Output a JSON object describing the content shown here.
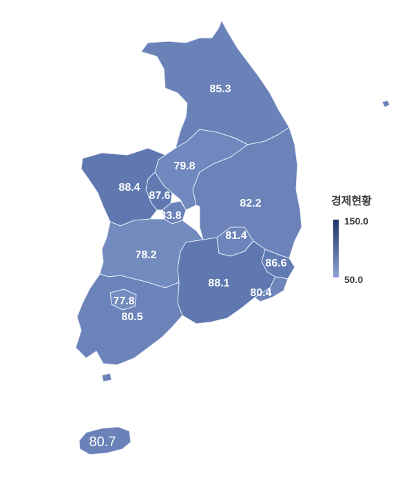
{
  "legend": {
    "title": "경제현황",
    "max_label": "150.0",
    "min_label": "50.0",
    "color_high": "#1f3666",
    "color_low": "#8ea2d4"
  },
  "regions": [
    {
      "id": "gangwon",
      "value": "85.3",
      "color": "#6a82b8"
    },
    {
      "id": "chungbuk",
      "value": "79.8",
      "color": "#7088bd"
    },
    {
      "id": "gyeongbuk",
      "value": "82.2",
      "color": "#6b83b9"
    },
    {
      "id": "chungnam",
      "value": "88.4",
      "color": "#5f78b0"
    },
    {
      "id": "sejong",
      "value": "87.6",
      "color": "#6179b1"
    },
    {
      "id": "daejeon",
      "value": "83.8",
      "color": "#6a82b8"
    },
    {
      "id": "daegu",
      "value": "81.4",
      "color": "#6d85ba"
    },
    {
      "id": "jeonbuk",
      "value": "78.2",
      "color": "#728abe"
    },
    {
      "id": "ulsan",
      "value": "86.6",
      "color": "#637bb3"
    },
    {
      "id": "gyeongnam",
      "value": "88.1",
      "color": "#5f78b0"
    },
    {
      "id": "busan",
      "value": "80.4",
      "color": "#6d85ba"
    },
    {
      "id": "gwangju",
      "value": "77.8",
      "color": "#738bbf"
    },
    {
      "id": "jeonnam",
      "value": "80.5",
      "color": "#6b83b9"
    },
    {
      "id": "jeju",
      "value": "80.7",
      "color": "#6a82b8"
    }
  ]
}
